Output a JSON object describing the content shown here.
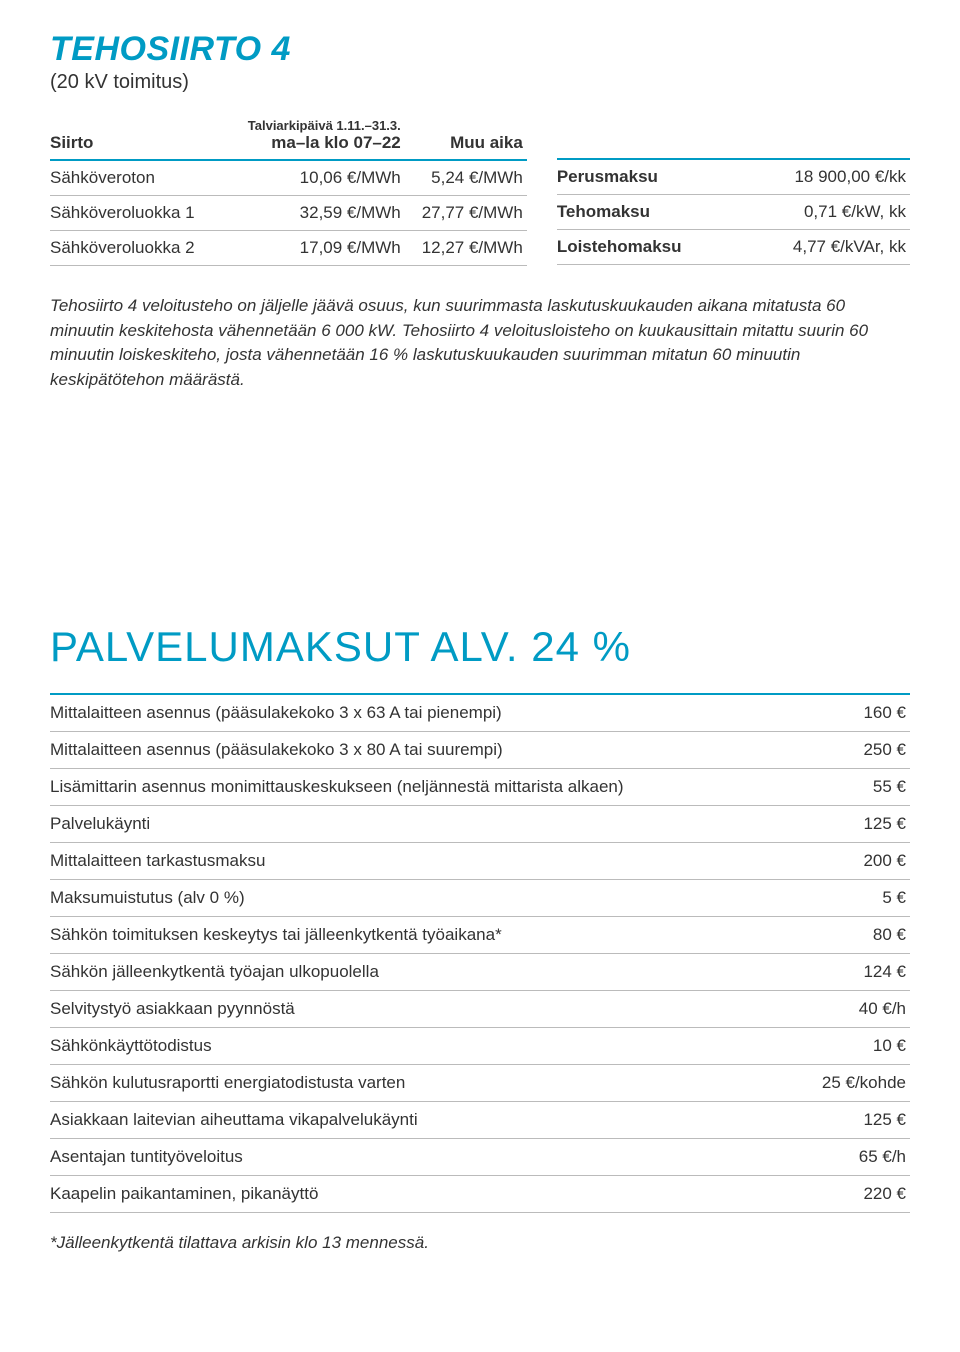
{
  "header": {
    "title": "TEHOSIIRTO 4",
    "subtitle": "(20 kV toimitus)"
  },
  "siirto_table": {
    "col1": "Siirto",
    "col2_line1": "Talviarkipäivä 1.11.–31.3.",
    "col2_line2": "ma–la klo 07–22",
    "col3": "Muu aika",
    "rows": [
      {
        "label": "Sähköveroton",
        "v1": "10,06 €/MWh",
        "v2": "5,24 €/MWh"
      },
      {
        "label": "Sähköveroluokka 1",
        "v1": "32,59 €/MWh",
        "v2": "27,77 €/MWh"
      },
      {
        "label": "Sähköveroluokka 2",
        "v1": "17,09 €/MWh",
        "v2": "12,27 €/MWh"
      }
    ]
  },
  "fees_table": {
    "rows": [
      {
        "label": "Perusmaksu",
        "value": "18 900,00 €/kk"
      },
      {
        "label": "Tehomaksu",
        "value": "0,71 €/kW, kk"
      },
      {
        "label": "Loistehomaksu",
        "value": "4,77 €/kVAr, kk"
      }
    ]
  },
  "note": "Tehosiirto 4 veloitusteho on jäljelle jäävä osuus, kun suurimmasta laskutuskuukauden aikana mitatusta 60 minuutin keskitehosta vähennetään 6 000 kW. Tehosiirto 4 veloitusloisteho on kuukausittain mitattu suurin 60 minuutin loiskeskiteho, josta vähennetään 16 % laskutuskuukauden suurimman mitatun 60 minuutin keskipätötehon määrästä.",
  "services": {
    "heading": "PALVELUMAKSUT ALV. 24 %",
    "rows": [
      {
        "label": "Mittalaitteen asennus (pääsulakekoko 3 x 63 A tai pienempi)",
        "value": "160 €"
      },
      {
        "label": "Mittalaitteen asennus (pääsulakekoko 3 x 80 A tai suurempi)",
        "value": "250 €"
      },
      {
        "label": "Lisämittarin asennus monimittauskeskukseen (neljännestä mittarista alkaen)",
        "value": "55 €"
      },
      {
        "label": "Palvelukäynti",
        "value": "125 €"
      },
      {
        "label": "Mittalaitteen tarkastusmaksu",
        "value": "200 €"
      },
      {
        "label": "Maksumuistutus (alv 0 %)",
        "value": "5 €"
      },
      {
        "label": "Sähkön toimituksen keskeytys tai jälleenkytkentä työaikana*",
        "value": "80 €"
      },
      {
        "label": "Sähkön jälleenkytkentä työajan ulkopuolella",
        "value": "124 €"
      },
      {
        "label": "Selvitystyö asiakkaan pyynnöstä",
        "value": "40 €/h"
      },
      {
        "label": "Sähkönkäyttötodistus",
        "value": "10 €"
      },
      {
        "label": "Sähkön kulutusraportti energiatodistusta varten",
        "value": "25 €/kohde"
      },
      {
        "label": "Asiakkaan laitevian aiheuttama vikapalvelukäynti",
        "value": "125 €"
      },
      {
        "label": "Asentajan tuntityöveloitus",
        "value": "65 €/h"
      },
      {
        "label": "Kaapelin paikantaminen, pikanäyttö",
        "value": "220 €"
      }
    ],
    "footnote": "*Jälleenkytkentä tilattava arkisin klo 13 mennessä."
  },
  "colors": {
    "accent": "#009bc4",
    "text": "#333333",
    "rule": "#bbbbbb",
    "background": "#ffffff"
  }
}
